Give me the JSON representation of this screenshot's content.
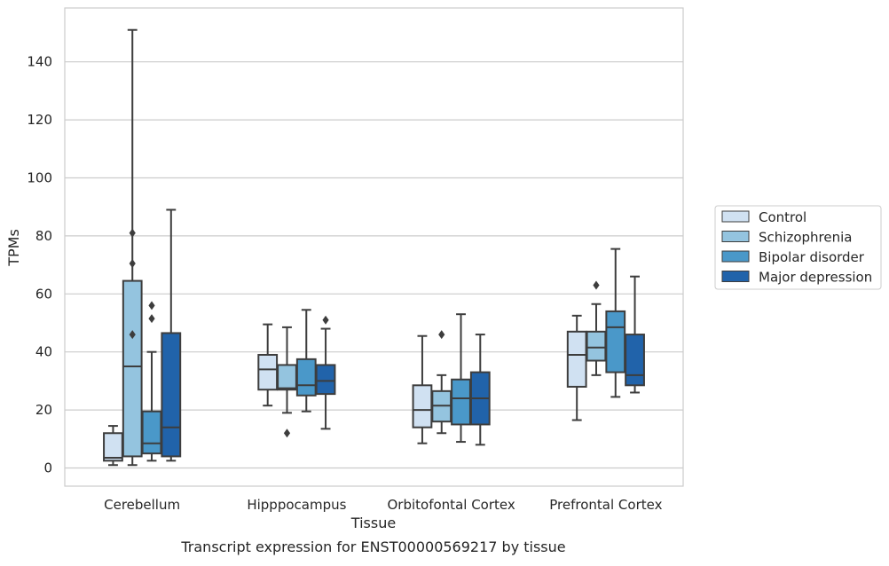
{
  "chart_data": {
    "type": "box",
    "title": "",
    "caption": "Transcript expression for ENST00000569217 by tissue",
    "xlabel": "Tissue",
    "ylabel": "TPMs",
    "ylim": [
      -6,
      158
    ],
    "yticks": [
      0,
      20,
      40,
      60,
      80,
      100,
      120,
      140
    ],
    "grid": "horizontal",
    "legend_position": "right",
    "categories": [
      "Cerebellum",
      "Hipppocampus",
      "Orbitofontal Cortex",
      "Prefrontal Cortex"
    ],
    "series": [
      {
        "name": "Control",
        "color": "#d0e1f2",
        "boxes": [
          {
            "whislo": 1,
            "q1": 2.5,
            "med": 3.5,
            "q3": 12,
            "whishi": 14.5,
            "fliers": []
          },
          {
            "whislo": 21.5,
            "q1": 27,
            "med": 34,
            "q3": 39,
            "whishi": 49.5,
            "fliers": []
          },
          {
            "whislo": 8.5,
            "q1": 14,
            "med": 20,
            "q3": 28.5,
            "whishi": 45.5,
            "fliers": []
          },
          {
            "whislo": 16.5,
            "q1": 28,
            "med": 39,
            "q3": 47,
            "whishi": 52.5,
            "fliers": []
          }
        ]
      },
      {
        "name": "Schizophrenia",
        "color": "#94c4df",
        "boxes": [
          {
            "whislo": 1,
            "q1": 4,
            "med": 35,
            "q3": 64.5,
            "whishi": 151,
            "fliers": [
              81,
              70.5,
              46
            ]
          },
          {
            "whislo": 19,
            "q1": 27,
            "med": 27.5,
            "q3": 35.5,
            "whishi": 48.5,
            "fliers": [
              12
            ]
          },
          {
            "whislo": 12,
            "q1": 16,
            "med": 21.5,
            "q3": 26.5,
            "whishi": 32,
            "fliers": [
              46
            ]
          },
          {
            "whislo": 32,
            "q1": 37,
            "med": 41.5,
            "q3": 47,
            "whishi": 56.5,
            "fliers": [
              63
            ]
          }
        ]
      },
      {
        "name": "Bipolar disorder",
        "color": "#4a98c9",
        "boxes": [
          {
            "whislo": 2.5,
            "q1": 5,
            "med": 8.5,
            "q3": 19.5,
            "whishi": 40,
            "fliers": [
              56,
              51.5
            ]
          },
          {
            "whislo": 19.5,
            "q1": 25,
            "med": 28.5,
            "q3": 37.5,
            "whishi": 54.5,
            "fliers": []
          },
          {
            "whislo": 9,
            "q1": 15,
            "med": 24,
            "q3": 30.5,
            "whishi": 53,
            "fliers": []
          },
          {
            "whislo": 24.5,
            "q1": 33,
            "med": 48.5,
            "q3": 54,
            "whishi": 75.5,
            "fliers": []
          }
        ]
      },
      {
        "name": "Major depression",
        "color": "#2163aa",
        "boxes": [
          {
            "whislo": 2.5,
            "q1": 4,
            "med": 14,
            "q3": 46.5,
            "whishi": 89,
            "fliers": []
          },
          {
            "whislo": 13.5,
            "q1": 25.5,
            "med": 30,
            "q3": 35.5,
            "whishi": 48,
            "fliers": [
              51
            ]
          },
          {
            "whislo": 8,
            "q1": 15,
            "med": 24,
            "q3": 33,
            "whishi": 46,
            "fliers": []
          },
          {
            "whislo": 26,
            "q1": 28.5,
            "med": 32,
            "q3": 46,
            "whishi": 66,
            "fliers": []
          }
        ]
      }
    ]
  }
}
